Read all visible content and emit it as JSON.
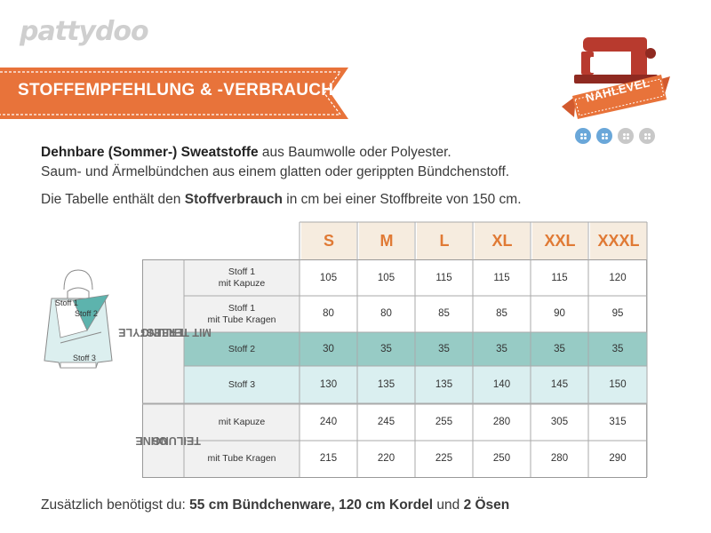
{
  "logo": "pattydoo",
  "banner": {
    "title": "STOFFEMPFEHLUNG & -VERBRAUCH",
    "color": "#e8733a"
  },
  "badge": {
    "label": "NÄHLEVEL",
    "dots_filled": 2,
    "dots_total": 4,
    "accent": "#b83a2e"
  },
  "intro": {
    "bold1": "Dehnbare (Sommer-) Sweatstoffe",
    "text1": " aus Baumwolle oder Polyester.",
    "line2": "Saum- und Ärmelbündchen aus einem glatten oder gerippten Bündchenstoff.",
    "pre3": "Die Tabelle enthält den ",
    "bold3": "Stoffverbrauch",
    "post3": " in cm bei einer Stoffbreite von 150 cm."
  },
  "sweater": {
    "stoff1": "Stoff 1",
    "stoff2": "Stoff 2",
    "stoff3": "Stoff 3"
  },
  "table": {
    "sizes": [
      "S",
      "M",
      "L",
      "XL",
      "XXL",
      "XXXL"
    ],
    "groups": [
      {
        "label_l1": "FREESTYLE",
        "label_l2": "MIT TEILUNG"
      },
      {
        "label_l1": "OHNE",
        "label_l2": "TEILUNG"
      }
    ],
    "rows": [
      {
        "label1": "Stoff 1",
        "label2": "mit Kapuze",
        "values": [
          "105",
          "105",
          "115",
          "115",
          "115",
          "120"
        ]
      },
      {
        "label1": "Stoff 1",
        "label2": "mit Tube Kragen",
        "values": [
          "80",
          "80",
          "85",
          "85",
          "90",
          "95"
        ]
      },
      {
        "label1": "Stoff 2",
        "label2": "",
        "values": [
          "30",
          "35",
          "35",
          "35",
          "35",
          "35"
        ]
      },
      {
        "label1": "Stoff 3",
        "label2": "",
        "values": [
          "130",
          "135",
          "135",
          "140",
          "145",
          "150"
        ]
      },
      {
        "label1": "mit Kapuze",
        "label2": "",
        "values": [
          "240",
          "245",
          "255",
          "280",
          "305",
          "315"
        ]
      },
      {
        "label1": "mit Tube Kragen",
        "label2": "",
        "values": [
          "215",
          "220",
          "225",
          "250",
          "280",
          "290"
        ]
      }
    ]
  },
  "footer": {
    "pre": "Zusätzlich benötigst du: ",
    "b1": "55 cm Bündchenware, 120 cm Kordel",
    "mid": " und ",
    "b2": "2 Ösen"
  }
}
